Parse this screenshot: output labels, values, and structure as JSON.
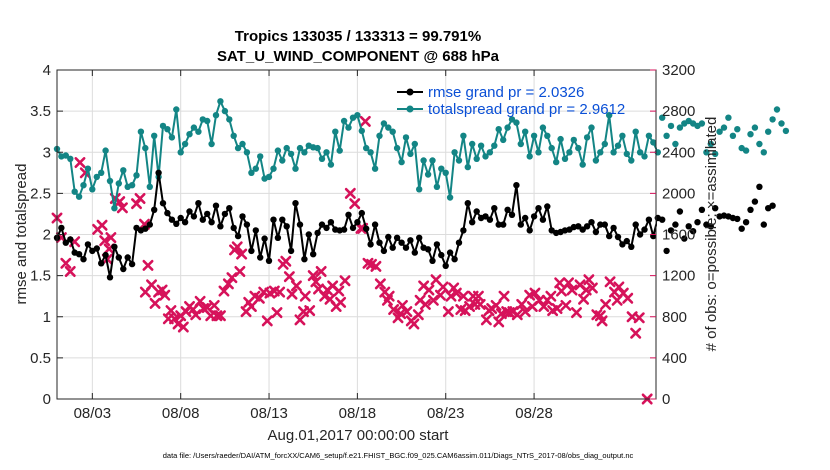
{
  "chart_data": {
    "type": "line",
    "title": [
      "Tropics 133035 / 133313 = 99.791%",
      "SAT_U_WIND_COMPONENT @ 688 hPa"
    ],
    "xlabel": "Aug.01,2017 00:00:00 start",
    "ylabel_left": "rmse and totalspread",
    "ylabel_right": "# of obs: o=possible; ×=assimilated",
    "footnote": "data file: /Users/raeder/DAI/ATM_forcXX/CAM6_setup/f.e21.FHIST_BGC.f09_025.CAM6assim.011/Diags_NTrS_2017-08/obs_diag_output.nc",
    "xlim": [
      1,
      34.9
    ],
    "ylim_left": [
      0,
      4
    ],
    "ylim_right": [
      0,
      3200
    ],
    "x_ticks": [
      3,
      8,
      13,
      18,
      23,
      28
    ],
    "x_tick_labels": [
      "08/03",
      "08/08",
      "08/13",
      "08/18",
      "08/23",
      "08/28"
    ],
    "y_ticks_left": [
      0,
      0.5,
      1,
      1.5,
      2,
      2.5,
      3,
      3.5,
      4
    ],
    "y_tick_labels_left": [
      "0",
      "0.5",
      "1",
      "1.5",
      "2",
      "2.5",
      "3",
      "3.5",
      "4"
    ],
    "y_ticks_right": [
      0,
      400,
      800,
      1200,
      1600,
      2000,
      2400,
      2800,
      3200
    ],
    "y_tick_labels_right": [
      "0",
      "400",
      "800",
      "1200",
      "1600",
      "2000",
      "2400",
      "2800",
      "3200"
    ],
    "grid": true,
    "legend": {
      "placement": "top-right",
      "entries": [
        "rmse grand pr = 2.0326",
        "totalspread grand pr = 2.9612"
      ]
    },
    "colors": {
      "rmse": "#000000",
      "totalspread": "#138585",
      "nobs": "#d6125a",
      "legend_text": "#0a4fd6",
      "grid": "#dcdcdc"
    },
    "series": [
      {
        "name": "rmse",
        "axis": "left",
        "x_start": 1,
        "x_step": 0.25,
        "values": [
          1.96,
          2.08,
          1.9,
          1.94,
          1.78,
          1.76,
          1.7,
          1.88,
          1.8,
          1.83,
          1.65,
          1.75,
          1.48,
          1.85,
          1.72,
          1.58,
          1.72,
          1.64,
          2.08,
          2.05,
          2.07,
          2.12,
          2.3,
          2.75,
          2.38,
          2.26,
          2.18,
          2.13,
          2.2,
          2.15,
          2.28,
          2.22,
          2.38,
          2.18,
          2.25,
          2.15,
          2.35,
          2.1,
          2.25,
          2.32,
          2.08,
          1.98,
          2.22,
          2.12,
          1.8,
          2.05,
          1.72,
          1.95,
          1.68,
          2.18,
          1.96,
          2.18,
          2.1,
          1.8,
          2.38,
          2.12,
          1.7,
          2.0,
          1.76,
          2.02,
          2.12,
          2.08,
          2.15,
          2.06,
          2.05,
          2.06,
          2.24,
          2.08,
          2.15,
          2.26,
          2.07,
          1.88,
          2.12,
          1.9,
          1.8,
          1.97,
          1.84,
          1.96,
          1.9,
          1.84,
          1.93,
          1.78,
          1.96,
          1.84,
          1.82,
          1.68,
          1.88,
          1.75,
          1.62,
          1.78,
          1.7,
          1.9,
          2.05,
          2.38,
          2.15,
          2.28,
          2.2,
          2.22,
          2.18,
          2.32,
          2.12,
          2.12,
          2.3,
          2.24,
          2.6,
          2.12,
          2.2,
          2.05,
          2.22,
          2.32,
          2.18,
          2.34,
          2.05,
          2.02,
          2.03,
          2.05,
          2.06,
          2.09,
          2.1,
          2.06,
          2.1,
          2.15,
          2.03,
          2.12,
          2.12,
          1.98,
          2.08,
          1.97,
          1.88,
          1.92,
          1.85,
          2.12,
          2.0,
          2.06,
          2.18,
          1.98,
          2.2,
          2.18,
          1.8,
          2.05,
          2.12,
          2.28,
          1.95,
          2.1,
          2.04,
          2.15,
          2.3,
          2.12,
          2.1,
          2.32,
          2.22,
          2.23,
          2.22,
          2.2,
          2.19,
          2.07,
          2.15,
          2.3,
          2.4,
          2.58,
          2.12,
          2.32,
          2.35
        ]
      },
      {
        "name": "totalspread",
        "axis": "left",
        "x_start": 1,
        "x_step": 0.25,
        "values": [
          3.04,
          2.95,
          2.96,
          2.92,
          2.52,
          2.46,
          2.6,
          2.8,
          2.55,
          2.7,
          2.75,
          3.02,
          2.65,
          2.32,
          2.62,
          2.78,
          2.58,
          2.6,
          2.72,
          3.25,
          3.05,
          2.58,
          3.2,
          2.7,
          3.32,
          3.28,
          3.18,
          3.52,
          3.0,
          3.1,
          3.22,
          3.3,
          3.25,
          3.4,
          3.38,
          3.1,
          3.45,
          3.62,
          3.5,
          3.4,
          3.2,
          3.05,
          3.1,
          3.0,
          2.75,
          2.8,
          2.95,
          2.68,
          2.7,
          2.8,
          3.02,
          2.9,
          3.05,
          2.98,
          2.8,
          3.05,
          3.0,
          3.08,
          3.06,
          3.05,
          2.92,
          3.0,
          2.85,
          3.25,
          3.02,
          3.38,
          3.3,
          3.42,
          3.45,
          3.26,
          3.05,
          3.0,
          2.8,
          3.2,
          3.35,
          3.3,
          3.25,
          3.05,
          2.88,
          3.18,
          2.98,
          3.1,
          2.55,
          2.9,
          2.73,
          2.9,
          2.58,
          2.8,
          2.75,
          2.45,
          3.0,
          2.9,
          3.2,
          2.82,
          3.1,
          2.92,
          3.08,
          2.95,
          3.0,
          3.08,
          3.28,
          3.15,
          3.3,
          3.4,
          3.36,
          3.1,
          3.25,
          2.95,
          3.2,
          3.0,
          3.3,
          3.2,
          3.05,
          2.88,
          3.16,
          2.92,
          3.0,
          3.15,
          3.05,
          2.85,
          3.18,
          3.3,
          2.9,
          3.0,
          3.1,
          3.45,
          3.0,
          3.08,
          3.2,
          2.98,
          2.9,
          3.25,
          3.0,
          2.95,
          3.2,
          3.12,
          3.0,
          3.42,
          3.2,
          3.32,
          3.1,
          3.3,
          3.35,
          3.38,
          3.35,
          3.32,
          3.35,
          3.0,
          3.1,
          2.98,
          3.25,
          3.3,
          3.42,
          3.2,
          3.28,
          3.05,
          3.02,
          3.22,
          3.3,
          3.1,
          3.0,
          3.25,
          3.4,
          3.52,
          3.35,
          3.26
        ]
      },
      {
        "name": "nobs_assimilated",
        "axis": "right",
        "points": [
          [
            1.0,
            1760
          ],
          [
            1.25,
            1570
          ],
          [
            1.5,
            1320
          ],
          [
            1.75,
            1240
          ],
          [
            2.0,
            1530
          ],
          [
            2.3,
            2300
          ],
          [
            2.6,
            2200
          ],
          [
            3.3,
            1650
          ],
          [
            3.55,
            1690
          ],
          [
            3.7,
            1540
          ],
          [
            3.85,
            1360
          ],
          [
            3.95,
            1460
          ],
          [
            4.05,
            1570
          ],
          [
            4.3,
            1950
          ],
          [
            4.55,
            1920
          ],
          [
            4.7,
            1860
          ],
          [
            5.5,
            1900
          ],
          [
            5.7,
            1950
          ],
          [
            5.95,
            1700
          ],
          [
            6.0,
            1040
          ],
          [
            6.15,
            1300
          ],
          [
            6.35,
            1110
          ],
          [
            6.55,
            930
          ],
          [
            6.75,
            1040
          ],
          [
            6.95,
            1060
          ],
          [
            7.1,
            1010
          ],
          [
            7.3,
            780
          ],
          [
            7.45,
            860
          ],
          [
            7.65,
            780
          ],
          [
            7.85,
            730
          ],
          [
            8.0,
            810
          ],
          [
            8.15,
            700
          ],
          [
            8.3,
            850
          ],
          [
            8.5,
            900
          ],
          [
            8.7,
            870
          ],
          [
            8.85,
            820
          ],
          [
            9.1,
            950
          ],
          [
            9.3,
            880
          ],
          [
            9.5,
            890
          ],
          [
            9.7,
            810
          ],
          [
            9.9,
            910
          ],
          [
            10.05,
            810
          ],
          [
            10.25,
            810
          ],
          [
            10.45,
            1050
          ],
          [
            10.7,
            1120
          ],
          [
            10.9,
            1180
          ],
          [
            11.05,
            1450
          ],
          [
            11.2,
            1480
          ],
          [
            11.35,
            1240
          ],
          [
            11.45,
            1410
          ],
          [
            11.7,
            850
          ],
          [
            11.85,
            940
          ],
          [
            12.0,
            900
          ],
          [
            12.2,
            1000
          ],
          [
            12.45,
            980
          ],
          [
            12.7,
            1040
          ],
          [
            12.9,
            760
          ],
          [
            13.05,
            1030
          ],
          [
            13.3,
            1050
          ],
          [
            13.45,
            840
          ],
          [
            13.6,
            1040
          ],
          [
            13.8,
            1310
          ],
          [
            13.95,
            1340
          ],
          [
            14.15,
            1190
          ],
          [
            14.3,
            1020
          ],
          [
            14.55,
            1100
          ],
          [
            14.75,
            770
          ],
          [
            14.95,
            850
          ],
          [
            15.05,
            1000
          ],
          [
            15.3,
            860
          ],
          [
            15.5,
            1200
          ],
          [
            15.65,
            1140
          ],
          [
            15.8,
            1070
          ],
          [
            15.95,
            1240
          ],
          [
            16.15,
            1000
          ],
          [
            16.3,
            1060
          ],
          [
            16.45,
            970
          ],
          [
            16.6,
            1100
          ],
          [
            16.8,
            900
          ],
          [
            16.95,
            1050
          ],
          [
            17.05,
            940
          ],
          [
            17.3,
            1150
          ],
          [
            17.6,
            2000
          ],
          [
            17.85,
            1900
          ],
          [
            18.2,
            1660
          ],
          [
            18.3,
            1660
          ],
          [
            18.45,
            2700
          ],
          [
            18.6,
            1320
          ],
          [
            18.8,
            1310
          ],
          [
            19.05,
            1290
          ],
          [
            19.3,
            1120
          ],
          [
            19.55,
            1040
          ],
          [
            19.7,
            960
          ],
          [
            19.8,
            1000
          ],
          [
            20.05,
            870
          ],
          [
            20.3,
            790
          ],
          [
            20.45,
            830
          ],
          [
            20.55,
            910
          ],
          [
            20.8,
            850
          ],
          [
            21.05,
            760
          ],
          [
            21.2,
            730
          ],
          [
            21.45,
            820
          ],
          [
            21.55,
            960
          ],
          [
            21.75,
            1100
          ],
          [
            21.85,
            920
          ],
          [
            22.05,
            1060
          ],
          [
            22.3,
            960
          ],
          [
            22.45,
            1160
          ],
          [
            22.7,
            1010
          ],
          [
            22.85,
            1090
          ],
          [
            23.15,
            850
          ],
          [
            23.3,
            1000
          ],
          [
            23.45,
            1080
          ],
          [
            23.6,
            1030
          ],
          [
            23.85,
            870
          ],
          [
            24.0,
            1000
          ],
          [
            24.1,
            860
          ],
          [
            24.35,
            900
          ],
          [
            24.55,
            1000
          ],
          [
            24.65,
            920
          ],
          [
            24.85,
            1000
          ],
          [
            24.95,
            920
          ],
          [
            25.3,
            770
          ],
          [
            25.45,
            860
          ],
          [
            25.6,
            880
          ],
          [
            25.85,
            910
          ],
          [
            26.0,
            750
          ],
          [
            26.15,
            830
          ],
          [
            26.3,
            1000
          ],
          [
            26.45,
            850
          ],
          [
            26.6,
            840
          ],
          [
            26.8,
            850
          ],
          [
            27.05,
            820
          ],
          [
            27.3,
            920
          ],
          [
            27.5,
            850
          ],
          [
            27.75,
            1010
          ],
          [
            27.9,
            900
          ],
          [
            28.05,
            1030
          ],
          [
            28.3,
            960
          ],
          [
            28.55,
            900
          ],
          [
            28.75,
            960
          ],
          [
            28.95,
            1000
          ],
          [
            29.05,
            860
          ],
          [
            29.3,
            880
          ],
          [
            29.45,
            1130
          ],
          [
            29.55,
            1050
          ],
          [
            29.8,
            910
          ],
          [
            29.95,
            1130
          ],
          [
            30.15,
            1060
          ],
          [
            30.4,
            840
          ],
          [
            30.6,
            1110
          ],
          [
            30.8,
            970
          ],
          [
            30.95,
            1060
          ],
          [
            31.1,
            1160
          ],
          [
            31.3,
            1080
          ],
          [
            31.55,
            820
          ],
          [
            31.75,
            810
          ],
          [
            31.85,
            760
          ],
          [
            32.05,
            920
          ],
          [
            32.3,
            1140
          ],
          [
            32.55,
            1040
          ],
          [
            32.7,
            960
          ],
          [
            32.8,
            1090
          ],
          [
            33.05,
            1030
          ],
          [
            33.3,
            980
          ],
          [
            33.55,
            800
          ],
          [
            33.75,
            640
          ],
          [
            33.95,
            790
          ],
          [
            34.4,
            0
          ]
        ]
      }
    ]
  }
}
